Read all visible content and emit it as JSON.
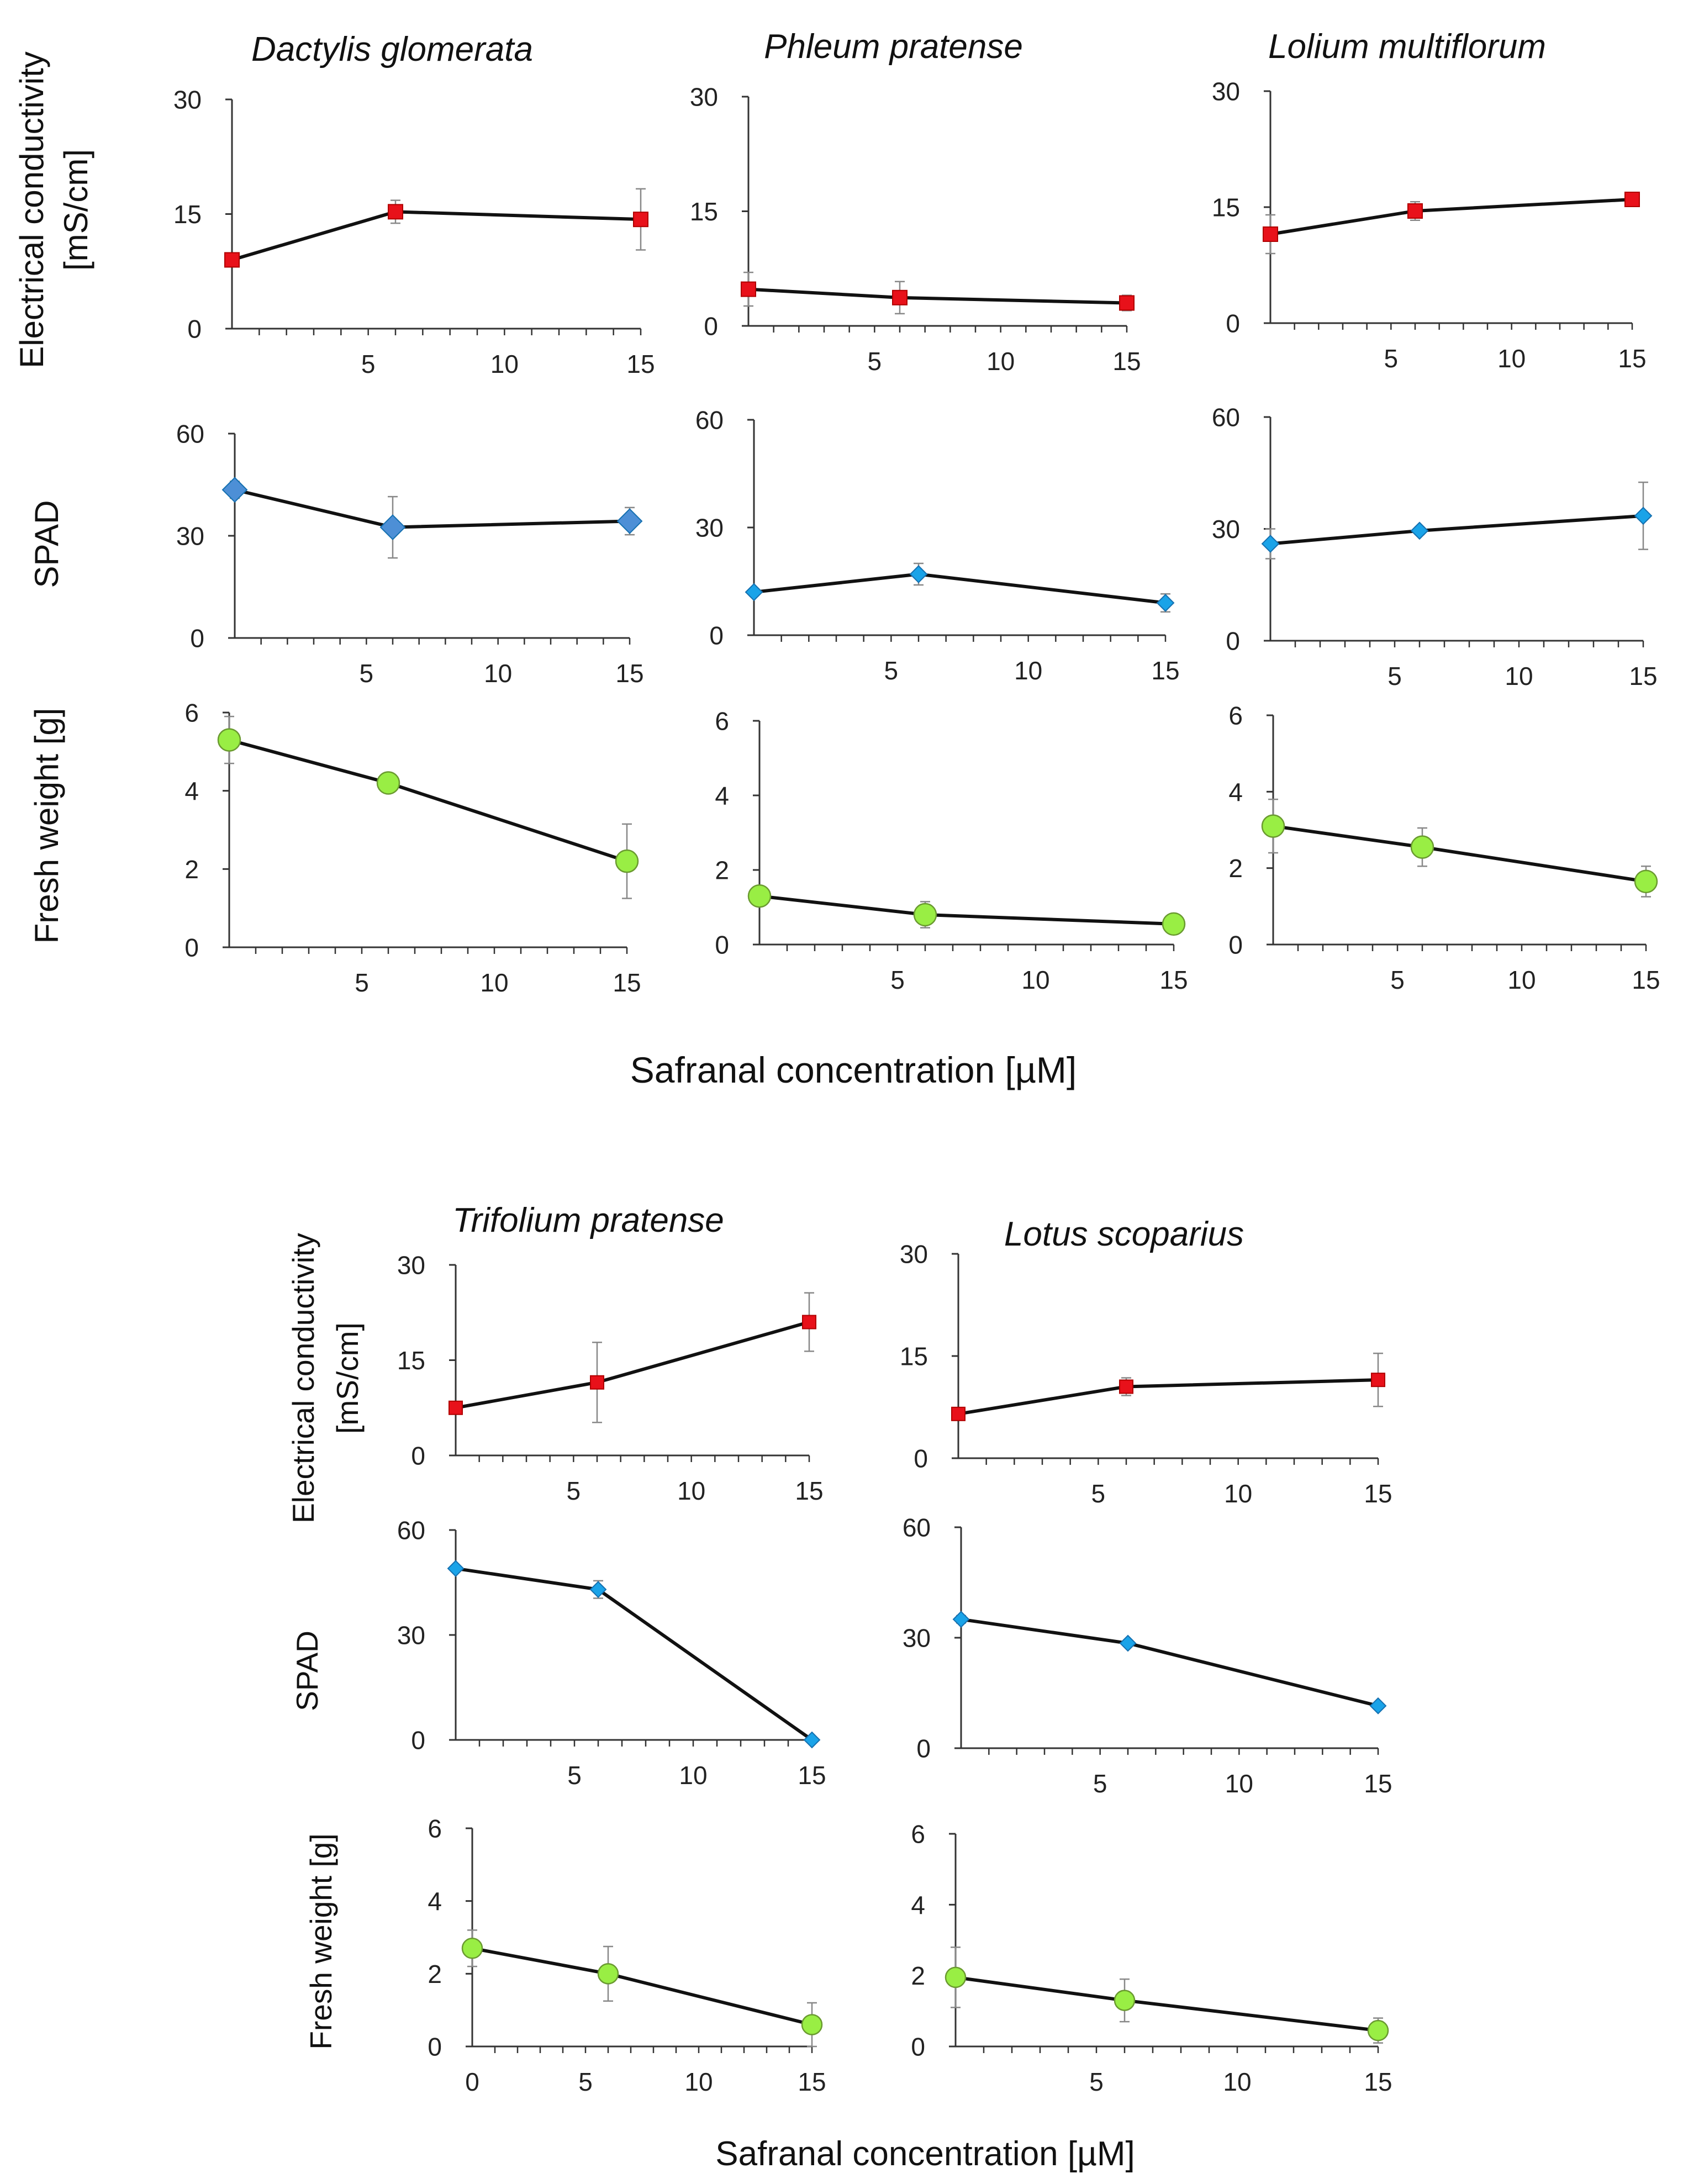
{
  "x_label": "Safranal concentration [µM]",
  "row_labels": {
    "ec_line1": "Electrical conductivity",
    "ec_line2": "[mS/cm]",
    "spad": "SPAD",
    "fw": "Fresh weight [g]"
  },
  "colors": {
    "ec_marker": "#e8111a",
    "spad_marker_a": "#4d8fd6",
    "spad_marker": "#1aa3e8",
    "fw_marker": "#99ee44",
    "line": "#111111",
    "axis": "#333333",
    "error": "#888888"
  },
  "chart_data": [
    {
      "id": "dg-ec",
      "type": "line",
      "species": "Dactylis glomerata",
      "metric": "Electrical conductivity [mS/cm]",
      "ylim": [
        0,
        30
      ],
      "yticks": [
        "0",
        "15",
        "30"
      ],
      "xticks": [
        "5",
        "10",
        "15"
      ],
      "x": [
        0,
        6,
        15
      ],
      "values": [
        9,
        15.3,
        14.3
      ],
      "errors": [
        0.8,
        1.5,
        4
      ]
    },
    {
      "id": "pp-ec",
      "type": "line",
      "species": "Phleum pratense",
      "metric": "Electrical conductivity [mS/cm]",
      "ylim": [
        0,
        30
      ],
      "yticks": [
        "0",
        "15",
        "30"
      ],
      "xticks": [
        "5",
        "10",
        "15"
      ],
      "x": [
        0,
        6,
        15
      ],
      "values": [
        4.8,
        3.7,
        3.0
      ],
      "errors": [
        2.2,
        2.1,
        1.0
      ]
    },
    {
      "id": "lm-ec",
      "type": "line",
      "species": "Lolium multiflorum",
      "metric": "Electrical conductivity [mS/cm]",
      "ylim": [
        0,
        30
      ],
      "yticks": [
        "0",
        "15",
        "30"
      ],
      "xticks": [
        "5",
        "10",
        "15"
      ],
      "x": [
        0,
        6,
        15
      ],
      "values": [
        11.5,
        14.5,
        16.0
      ],
      "errors": [
        2.5,
        1.2,
        0.8
      ]
    },
    {
      "id": "dg-spad",
      "type": "line",
      "metric": "SPAD",
      "ylim": [
        0,
        60
      ],
      "yticks": [
        "0",
        "30",
        "60"
      ],
      "xticks": [
        "5",
        "10",
        "15"
      ],
      "x": [
        0,
        6,
        15
      ],
      "values": [
        43.5,
        32.5,
        34.3
      ],
      "errors": [
        2.5,
        9,
        4
      ]
    },
    {
      "id": "pp-spad",
      "type": "line",
      "metric": "SPAD",
      "ylim": [
        0,
        60
      ],
      "yticks": [
        "0",
        "30",
        "60"
      ],
      "xticks": [
        "5",
        "10",
        "15"
      ],
      "x": [
        0,
        6,
        15
      ],
      "values": [
        12,
        17,
        9
      ],
      "errors": [
        1,
        3,
        2.5
      ]
    },
    {
      "id": "lm-spad",
      "type": "line",
      "metric": "SPAD",
      "ylim": [
        0,
        60
      ],
      "yticks": [
        "0",
        "30",
        "60"
      ],
      "xticks": [
        "5",
        "10",
        "15"
      ],
      "x": [
        0,
        6,
        15
      ],
      "values": [
        26,
        29.5,
        33.5
      ],
      "errors": [
        4,
        1,
        9
      ]
    },
    {
      "id": "dg-fw",
      "type": "line",
      "metric": "Fresh weight [g]",
      "ylim": [
        0,
        6
      ],
      "yticks": [
        "0",
        "2",
        "4",
        "6"
      ],
      "xticks": [
        "5",
        "10",
        "15"
      ],
      "x": [
        0,
        6,
        15
      ],
      "values": [
        5.3,
        4.2,
        2.2
      ],
      "errors": [
        0.6,
        0.15,
        0.95
      ]
    },
    {
      "id": "pp-fw",
      "type": "line",
      "metric": "Fresh weight [g]",
      "ylim": [
        0,
        6
      ],
      "yticks": [
        "0",
        "2",
        "4",
        "6"
      ],
      "xticks": [
        "5",
        "10",
        "15"
      ],
      "x": [
        0,
        6,
        15
      ],
      "values": [
        1.3,
        0.8,
        0.55
      ],
      "errors": [
        0.1,
        0.35,
        0.1
      ]
    },
    {
      "id": "lm-fw",
      "type": "line",
      "metric": "Fresh weight [g]",
      "ylim": [
        0,
        6
      ],
      "yticks": [
        "0",
        "2",
        "4",
        "6"
      ],
      "xticks": [
        "5",
        "10",
        "15"
      ],
      "x": [
        0,
        6,
        15
      ],
      "values": [
        3.1,
        2.55,
        1.65
      ],
      "errors": [
        0.7,
        0.5,
        0.4
      ]
    },
    {
      "id": "tp-ec",
      "type": "line",
      "species": "Trifolium pratense",
      "metric": "Electrical conductivity [mS/cm]",
      "ylim": [
        0,
        30
      ],
      "yticks": [
        "0",
        "15",
        "30"
      ],
      "xticks": [
        "5",
        "10",
        "15"
      ],
      "x": [
        0,
        6,
        15
      ],
      "values": [
        7.5,
        11.5,
        21
      ],
      "errors": [
        0.5,
        6.3,
        4.6
      ]
    },
    {
      "id": "ls-ec",
      "type": "line",
      "species": "Lotus scoparius",
      "metric": "Electrical conductivity [mS/cm]",
      "ylim": [
        0,
        30
      ],
      "yticks": [
        "0",
        "15",
        "30"
      ],
      "xticks": [
        "5",
        "10",
        "15"
      ],
      "x": [
        0,
        6,
        15
      ],
      "values": [
        6.5,
        10.5,
        11.5
      ],
      "errors": [
        0.5,
        1.3,
        3.9
      ]
    },
    {
      "id": "tp-spad",
      "type": "line",
      "metric": "SPAD",
      "ylim": [
        0,
        60
      ],
      "yticks": [
        "0",
        "30",
        "60"
      ],
      "xticks": [
        "5",
        "10",
        "15"
      ],
      "x": [
        0,
        6,
        15
      ],
      "values": [
        49,
        43,
        0
      ],
      "errors": [
        0.5,
        2.5,
        0.5
      ]
    },
    {
      "id": "ls-spad",
      "type": "line",
      "metric": "SPAD",
      "ylim": [
        0,
        60
      ],
      "yticks": [
        "0",
        "30",
        "60"
      ],
      "xticks": [
        "5",
        "10",
        "15"
      ],
      "x": [
        0,
        6,
        15
      ],
      "values": [
        35,
        28.5,
        11.5
      ],
      "errors": [
        1,
        0.8,
        0.5
      ]
    },
    {
      "id": "tp-fw",
      "type": "line",
      "metric": "Fresh weight [g]",
      "ylim": [
        0,
        6
      ],
      "yticks": [
        "0",
        "2",
        "4",
        "6"
      ],
      "xticks": [
        "0",
        "5",
        "10",
        "15"
      ],
      "x": [
        0,
        6,
        15
      ],
      "values": [
        2.7,
        2.0,
        0.6
      ],
      "errors": [
        0.5,
        0.75,
        0.6
      ]
    },
    {
      "id": "ls-fw",
      "type": "line",
      "metric": "Fresh weight [g]",
      "ylim": [
        0,
        6
      ],
      "yticks": [
        "0",
        "2",
        "4",
        "6"
      ],
      "xticks": [
        "5",
        "10",
        "15"
      ],
      "x": [
        0,
        6,
        15
      ],
      "values": [
        1.95,
        1.3,
        0.45
      ],
      "errors": [
        0.85,
        0.6,
        0.35
      ]
    }
  ]
}
